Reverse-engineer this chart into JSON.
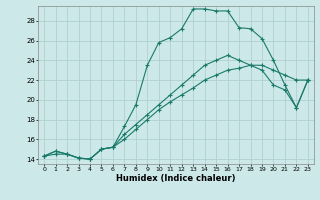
{
  "xlabel": "Humidex (Indice chaleur)",
  "bg_color": "#cce8e8",
  "grid_color": "#b0d0d0",
  "line_color": "#1a7a6a",
  "xlim": [
    -0.5,
    23.5
  ],
  "ylim": [
    13.5,
    29.5
  ],
  "xticks": [
    0,
    1,
    2,
    3,
    4,
    5,
    6,
    7,
    8,
    9,
    10,
    11,
    12,
    13,
    14,
    15,
    16,
    17,
    18,
    19,
    20,
    21,
    22,
    23
  ],
  "yticks": [
    14,
    16,
    18,
    20,
    22,
    24,
    26,
    28
  ],
  "line1_x": [
    0,
    1,
    2,
    3,
    4,
    5,
    6,
    7,
    8,
    9,
    10,
    11,
    12,
    13,
    14,
    15,
    16,
    17,
    18,
    19,
    20,
    21,
    22,
    23
  ],
  "line1_y": [
    14.3,
    14.8,
    14.5,
    14.1,
    14.0,
    15.0,
    15.2,
    17.3,
    19.5,
    23.5,
    25.8,
    26.3,
    27.2,
    29.2,
    29.2,
    29.0,
    29.0,
    27.3,
    27.2,
    26.2,
    24.0,
    21.5,
    19.2,
    22.0
  ],
  "line2_x": [
    0,
    1,
    2,
    3,
    4,
    5,
    6,
    7,
    8,
    9,
    10,
    11,
    12,
    13,
    14,
    15,
    16,
    17,
    18,
    19,
    20,
    21,
    22,
    23
  ],
  "line2_y": [
    14.3,
    14.8,
    14.5,
    14.1,
    14.0,
    15.0,
    15.2,
    16.5,
    17.5,
    18.5,
    19.5,
    20.5,
    21.5,
    22.5,
    23.5,
    24.0,
    24.5,
    24.0,
    23.5,
    23.0,
    21.5,
    21.0,
    19.2,
    22.0
  ],
  "line3_x": [
    0,
    1,
    2,
    3,
    4,
    5,
    6,
    7,
    8,
    9,
    10,
    11,
    12,
    13,
    14,
    15,
    16,
    17,
    18,
    19,
    20,
    21,
    22,
    23
  ],
  "line3_y": [
    14.3,
    14.5,
    14.5,
    14.1,
    14.0,
    15.0,
    15.2,
    16.0,
    17.0,
    18.0,
    19.0,
    19.8,
    20.5,
    21.2,
    22.0,
    22.5,
    23.0,
    23.2,
    23.5,
    23.5,
    23.0,
    22.5,
    22.0,
    22.0
  ]
}
